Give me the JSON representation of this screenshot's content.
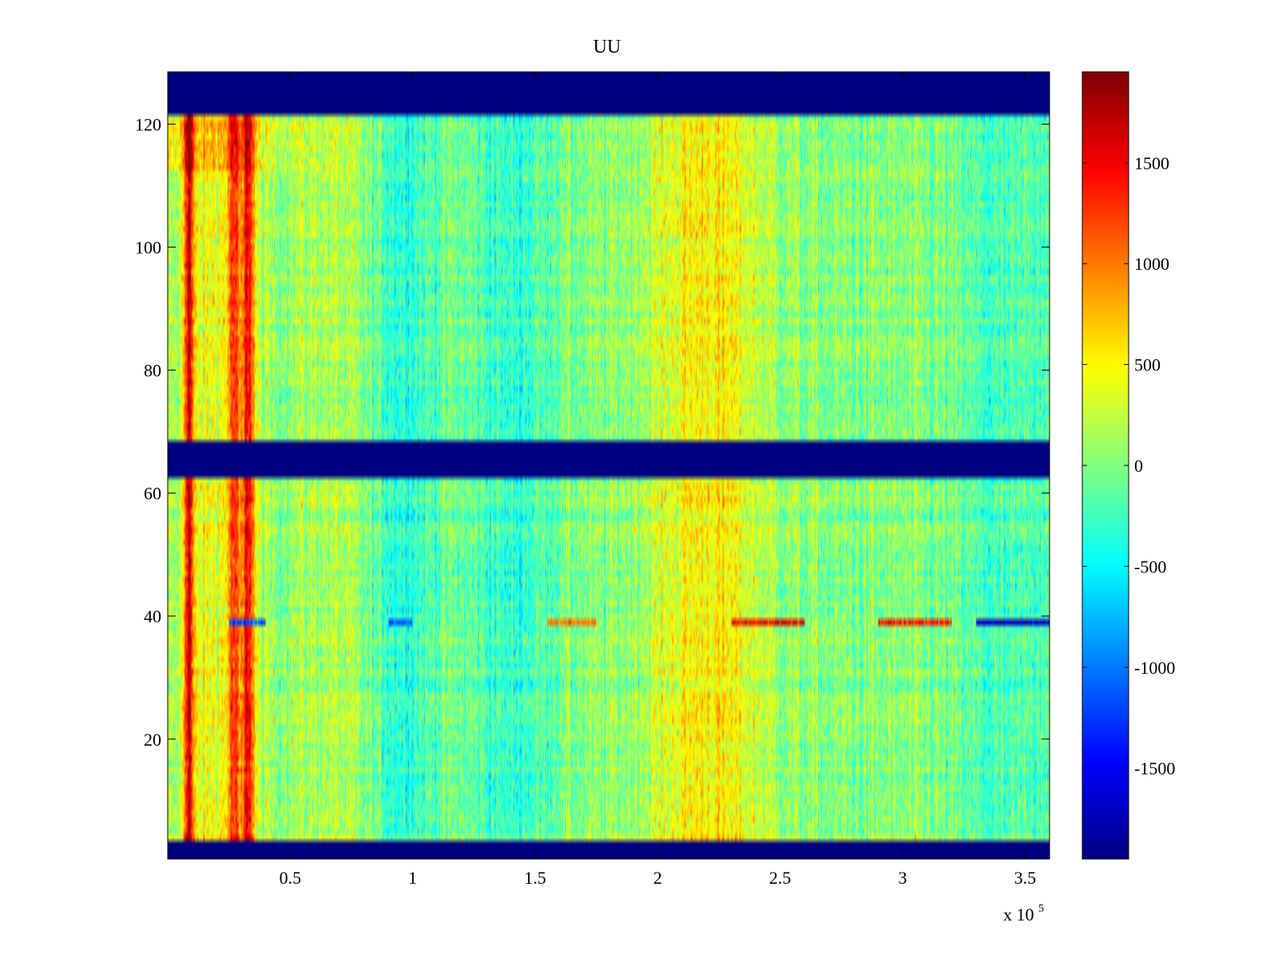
{
  "chart_data": {
    "type": "heatmap",
    "title": "UU",
    "x": {
      "min": 0,
      "max": 360000,
      "tick_values": [
        50000,
        100000,
        150000,
        200000,
        250000,
        300000,
        350000
      ],
      "tick_labels": [
        "0.5",
        "1",
        "1.5",
        "2",
        "2.5",
        "3",
        "3.5"
      ],
      "multiplier_label": "x 10",
      "multiplier_exponent": "5"
    },
    "y": {
      "min": 0.5,
      "max": 128.5,
      "tick_values": [
        20,
        40,
        60,
        80,
        100,
        120
      ],
      "tick_labels": [
        "20",
        "40",
        "60",
        "80",
        "100",
        "120"
      ]
    },
    "colorbar": {
      "colormap": "jet",
      "min": -1950,
      "max": 1950,
      "tick_values": [
        -1500,
        -1000,
        -500,
        0,
        500,
        1000,
        1500
      ],
      "tick_labels": [
        "-1500",
        "-1000",
        "-500",
        "0",
        "500",
        "1000",
        "1500"
      ]
    },
    "masked_rows": [
      [
        1,
        3
      ],
      [
        63,
        68
      ],
      [
        122,
        128
      ]
    ],
    "row_pattern": {
      "baseline": 0,
      "x_bands": [
        {
          "x": 8500,
          "width": 2000,
          "value": 1500
        },
        {
          "x": 27000,
          "width": 2500,
          "value": 900
        },
        {
          "x": 33000,
          "width": 2500,
          "value": 1350
        },
        {
          "x": 20000,
          "width": 15000,
          "value": 450
        },
        {
          "x": 65000,
          "width": 20000,
          "value": 200
        },
        {
          "x": 95000,
          "width": 15000,
          "value": -300
        },
        {
          "x": 140000,
          "width": 15000,
          "value": -300
        },
        {
          "x": 220000,
          "width": 25000,
          "value": 550
        },
        {
          "x": 340000,
          "width": 18000,
          "value": -250
        }
      ],
      "upper_rows_boost": {
        "rows_from": 113,
        "value": 350
      },
      "special_row": {
        "row": 39,
        "segments": [
          {
            "from": 25000,
            "to": 40000,
            "value": -1200
          },
          {
            "from": 90000,
            "to": 100000,
            "value": -1100
          },
          {
            "from": 155000,
            "to": 175000,
            "value": 1000
          },
          {
            "from": 230000,
            "to": 260000,
            "value": 1500
          },
          {
            "from": 290000,
            "to": 320000,
            "value": 1400
          },
          {
            "from": 330000,
            "to": 360000,
            "value": -1700
          }
        ]
      }
    }
  }
}
